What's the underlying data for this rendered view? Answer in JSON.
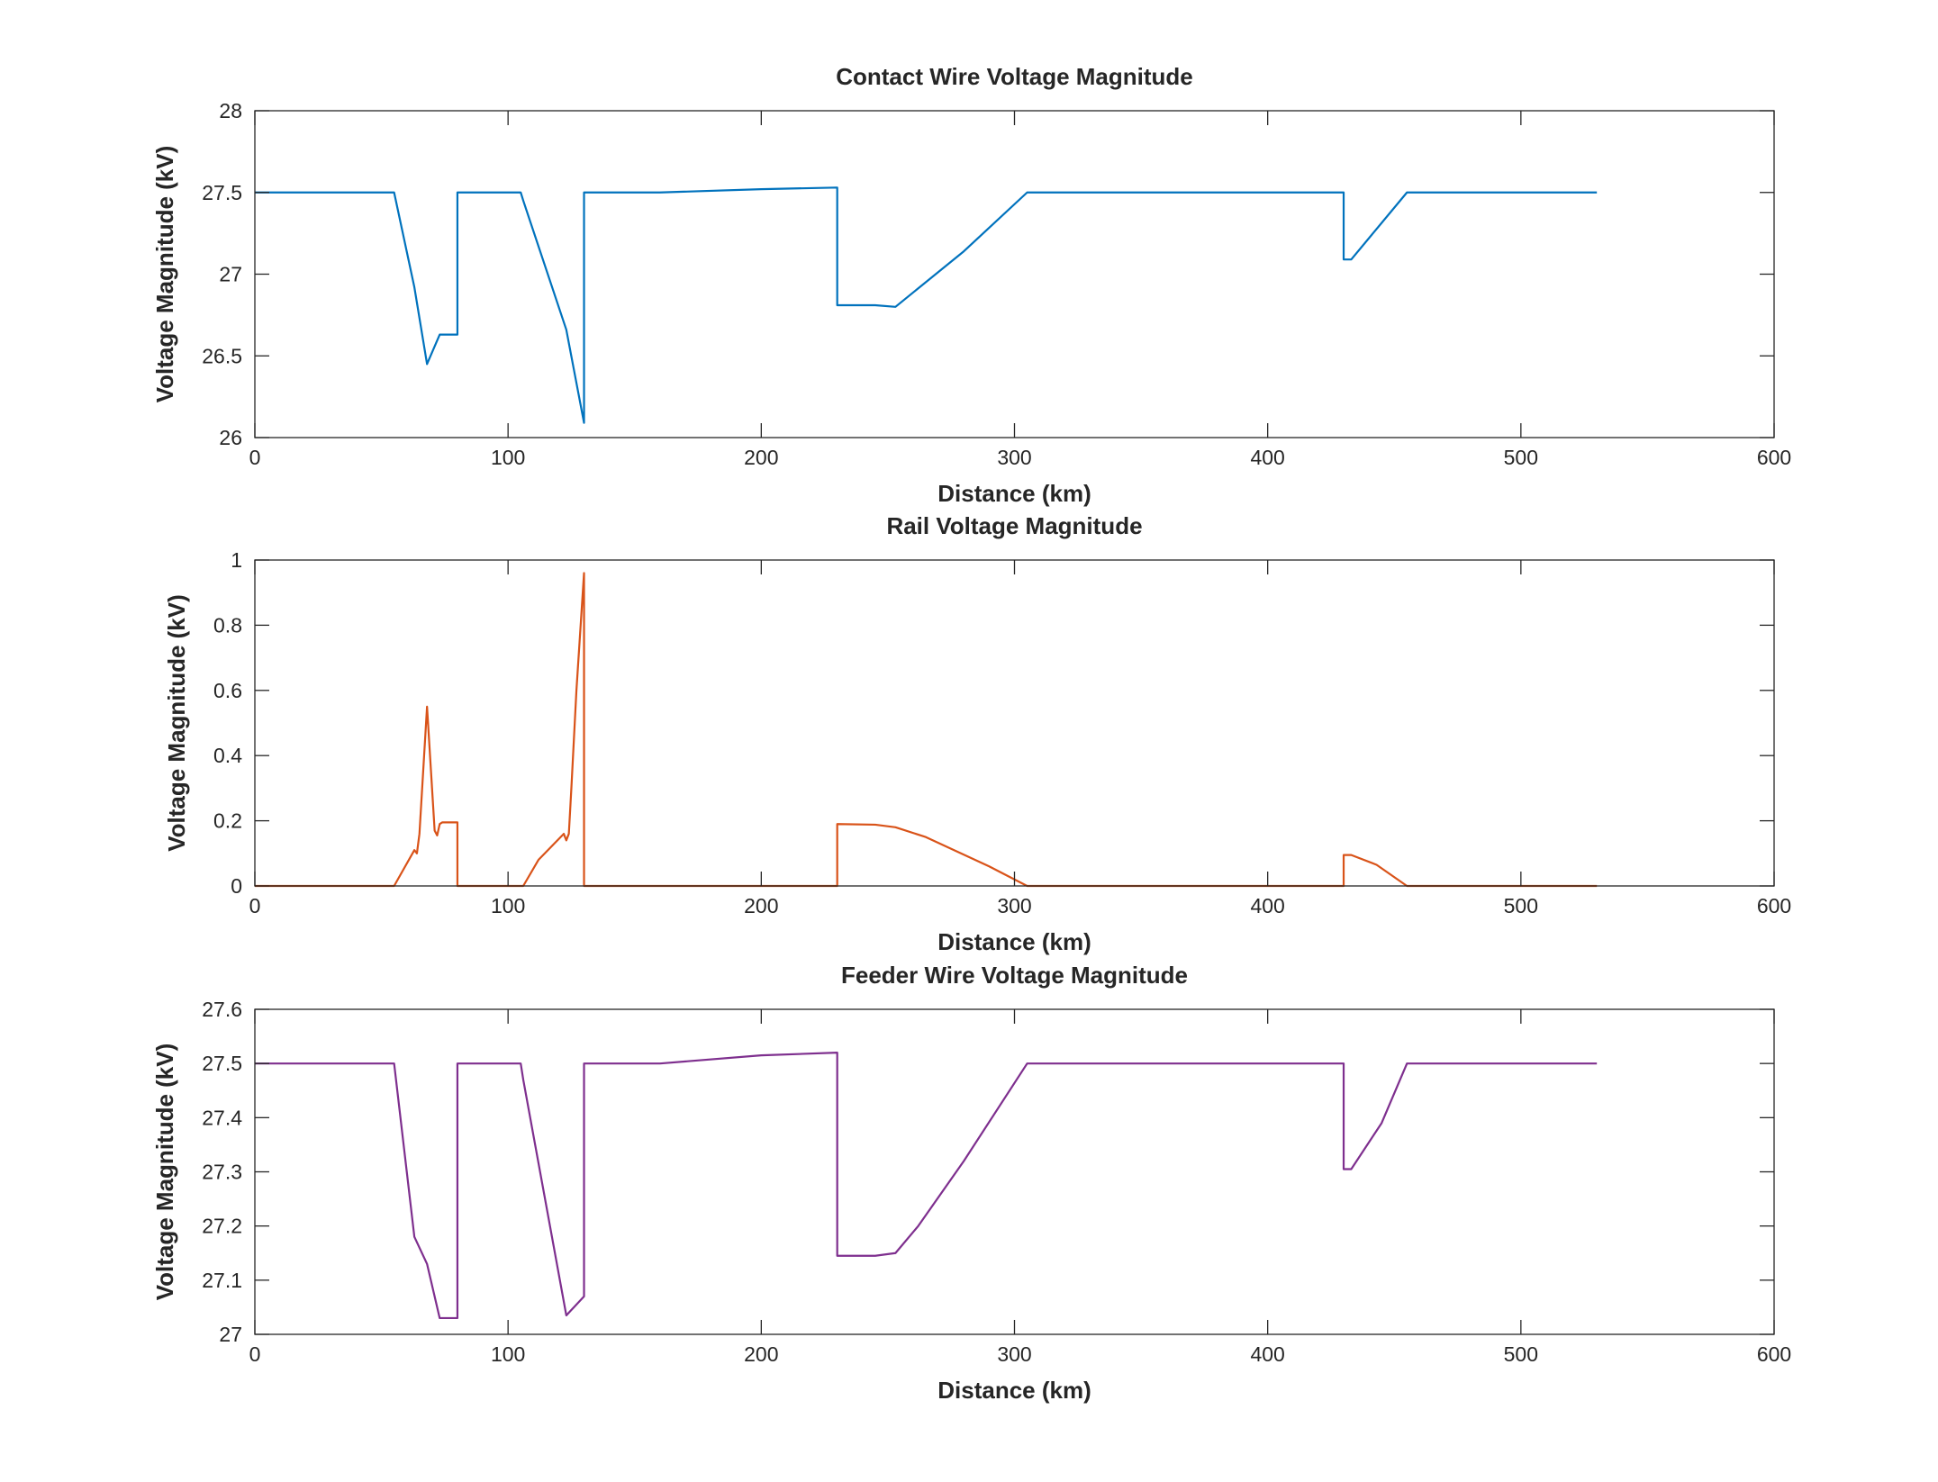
{
  "chart_data": [
    {
      "type": "line",
      "title": "Contact Wire Voltage Magnitude",
      "xlabel": "Distance (km)",
      "ylabel": "Voltage Magnitude (kV)",
      "xlim": [
        0,
        600
      ],
      "ylim": [
        26,
        28
      ],
      "xticks": [
        0,
        100,
        200,
        300,
        400,
        500,
        600
      ],
      "yticks": [
        26,
        26.5,
        27,
        27.5,
        28
      ],
      "xtick_labels": [
        "0",
        "100",
        "200",
        "300",
        "400",
        "500",
        "600"
      ],
      "ytick_labels": [
        "26",
        "26.5",
        "27",
        "27.5",
        "28"
      ],
      "grid": false,
      "series": [
        {
          "color": "#0072BD",
          "x": [
            0,
            55,
            63,
            68,
            73,
            80,
            80,
            105,
            106,
            123,
            130,
            130,
            160,
            200,
            230,
            230,
            245,
            253,
            280,
            305,
            355,
            430,
            430,
            433,
            455,
            530
          ],
          "y": [
            27.5,
            27.5,
            26.92,
            26.45,
            26.63,
            26.63,
            27.5,
            27.5,
            27.45,
            26.66,
            26.09,
            27.5,
            27.5,
            27.52,
            27.53,
            26.81,
            26.81,
            26.8,
            27.14,
            27.5,
            27.5,
            27.5,
            27.09,
            27.09,
            27.5,
            27.5
          ]
        }
      ]
    },
    {
      "type": "line",
      "title": "Rail Voltage Magnitude",
      "xlabel": "Distance (km)",
      "ylabel": "Voltage Magnitude (kV)",
      "xlim": [
        0,
        600
      ],
      "ylim": [
        0,
        1
      ],
      "xticks": [
        0,
        100,
        200,
        300,
        400,
        500,
        600
      ],
      "yticks": [
        0,
        0.2,
        0.4,
        0.6,
        0.8,
        1
      ],
      "xtick_labels": [
        "0",
        "100",
        "200",
        "300",
        "400",
        "500",
        "600"
      ],
      "ytick_labels": [
        "0",
        "0.2",
        "0.4",
        "0.6",
        "0.8",
        "1"
      ],
      "grid": false,
      "series": [
        {
          "color": "#D95319",
          "x": [
            0,
            55,
            63,
            64,
            65,
            68,
            71,
            72,
            73,
            74,
            80,
            80,
            105,
            106,
            112,
            122,
            123,
            124,
            125,
            127,
            130,
            130,
            160,
            230,
            230,
            245,
            253,
            265,
            290,
            305,
            430,
            430,
            433,
            443,
            455,
            530
          ],
          "y": [
            0,
            0,
            0.11,
            0.1,
            0.16,
            0.55,
            0.17,
            0.155,
            0.19,
            0.195,
            0.195,
            0,
            0,
            0,
            0.08,
            0.16,
            0.14,
            0.16,
            0.3,
            0.6,
            0.96,
            0,
            0,
            0,
            0.19,
            0.188,
            0.18,
            0.15,
            0.06,
            0,
            0,
            0.095,
            0.095,
            0.065,
            0,
            0
          ]
        }
      ]
    },
    {
      "type": "line",
      "title": "Feeder Wire Voltage Magnitude",
      "xlabel": "Distance (km)",
      "ylabel": "Voltage Magnitude (kV)",
      "xlim": [
        0,
        600
      ],
      "ylim": [
        27,
        27.6
      ],
      "xticks": [
        0,
        100,
        200,
        300,
        400,
        500,
        600
      ],
      "yticks": [
        27,
        27.1,
        27.2,
        27.3,
        27.4,
        27.5,
        27.6
      ],
      "xtick_labels": [
        "0",
        "100",
        "200",
        "300",
        "400",
        "500",
        "600"
      ],
      "ytick_labels": [
        "27",
        "27.1",
        "27.2",
        "27.3",
        "27.4",
        "27.5",
        "27.6"
      ],
      "grid": false,
      "series": [
        {
          "color": "#7E2F8E",
          "x": [
            0,
            55,
            63,
            68,
            73,
            80,
            80,
            105,
            106,
            123,
            130,
            130,
            160,
            200,
            230,
            230,
            245,
            253,
            262,
            280,
            305,
            355,
            430,
            430,
            433,
            445,
            455,
            530
          ],
          "y": [
            27.5,
            27.5,
            27.18,
            27.13,
            27.03,
            27.03,
            27.5,
            27.5,
            27.47,
            27.035,
            27.07,
            27.5,
            27.5,
            27.515,
            27.52,
            27.145,
            27.145,
            27.15,
            27.2,
            27.32,
            27.5,
            27.5,
            27.5,
            27.305,
            27.305,
            27.39,
            27.5,
            27.5
          ]
        }
      ]
    }
  ]
}
